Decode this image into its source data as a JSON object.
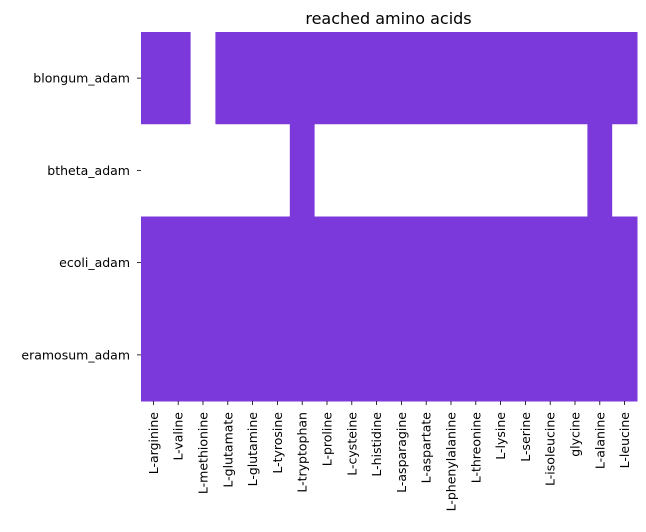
{
  "chart_data": {
    "type": "heatmap",
    "title": "reached amino acids",
    "xlabel": "",
    "ylabel": "",
    "colors": {
      "reached": "#7b39db",
      "not_reached": "#ffffff"
    },
    "x_categories": [
      "L-arginine",
      "L-valine",
      "L-methionine",
      "L-glutamate",
      "L-glutamine",
      "L-tyrosine",
      "L-tryptophan",
      "L-proline",
      "L-cysteine",
      "L-histidine",
      "L-asparagine",
      "L-aspartate",
      "L-phenylalanine",
      "L-threonine",
      "L-lysine",
      "L-serine",
      "L-isoleucine",
      "glycine",
      "L-alanine",
      "L-leucine"
    ],
    "y_categories": [
      "blongum_adam",
      "btheta_adam",
      "ecoli_adam",
      "eramosum_adam"
    ],
    "values": [
      [
        1,
        1,
        0,
        1,
        1,
        1,
        1,
        1,
        1,
        1,
        1,
        1,
        1,
        1,
        1,
        1,
        1,
        1,
        1,
        1
      ],
      [
        0,
        0,
        0,
        0,
        0,
        0,
        1,
        0,
        0,
        0,
        0,
        0,
        0,
        0,
        0,
        0,
        0,
        0,
        1,
        0
      ],
      [
        1,
        1,
        1,
        1,
        1,
        1,
        1,
        1,
        1,
        1,
        1,
        1,
        1,
        1,
        1,
        1,
        1,
        1,
        1,
        1
      ],
      [
        1,
        1,
        1,
        1,
        1,
        1,
        1,
        1,
        1,
        1,
        1,
        1,
        1,
        1,
        1,
        1,
        1,
        1,
        1,
        1
      ]
    ],
    "colorbar": false,
    "grid": false
  }
}
